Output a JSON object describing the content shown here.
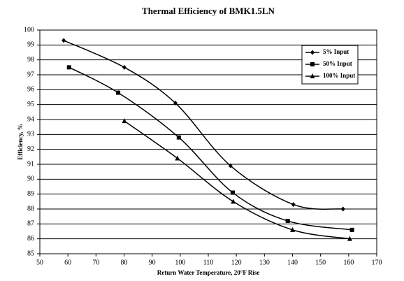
{
  "chart_data": {
    "type": "line",
    "title": "Thermal Efficiency of BMK1.5LN",
    "x_label": "Return Water Temperature, 20°F Rise",
    "y_label": "Efficiency, %",
    "xlim": [
      50,
      170
    ],
    "xticks": [
      50,
      60,
      70,
      80,
      90,
      100,
      110,
      120,
      130,
      140,
      150,
      160,
      170
    ],
    "ylim": [
      85,
      100
    ],
    "yticks": [
      85,
      86,
      87,
      88,
      89,
      90,
      91,
      92,
      93,
      94,
      95,
      96,
      97,
      98,
      99,
      100
    ],
    "grid": true,
    "legend_position": "upper-right",
    "smooth": true,
    "series": [
      {
        "name": "5% Input",
        "color": "#000000",
        "marker": "diamond",
        "x": [
          58.5,
          80.1,
          98.3,
          117.9,
          140.3,
          158
        ],
        "values": [
          99.3,
          97.5,
          95.1,
          90.9,
          88.3,
          88.0
        ]
      },
      {
        "name": "50% Input",
        "color": "#000000",
        "marker": "square",
        "x": [
          60.4,
          77.9,
          99.5,
          118.7,
          138.3,
          161.2
        ],
        "values": [
          97.5,
          95.8,
          92.8,
          89.1,
          87.2,
          86.6
        ]
      },
      {
        "name": "100% Input",
        "color": "#000000",
        "marker": "triangle",
        "x": [
          80.1,
          99,
          118.9,
          140,
          160.4
        ],
        "values": [
          93.9,
          91.4,
          88.5,
          86.6,
          86.0
        ]
      }
    ]
  }
}
